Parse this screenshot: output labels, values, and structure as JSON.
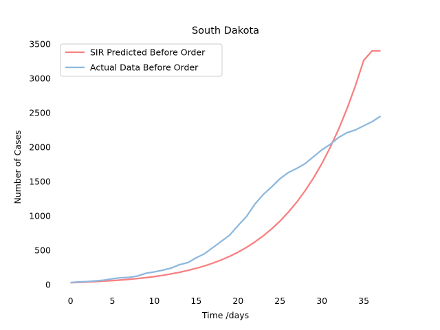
{
  "chart_data": {
    "type": "line",
    "title": "South Dakota",
    "xlabel": "Time /days",
    "ylabel": "Number of Cases",
    "xlim": [
      -1.85,
      38.85
    ],
    "ylim": [
      0,
      3500
    ],
    "xticks": [
      0,
      5,
      10,
      15,
      20,
      25,
      30,
      35
    ],
    "yticks": [
      0,
      500,
      1000,
      1500,
      2000,
      2500,
      3000,
      3500
    ],
    "grid": false,
    "legend_position": "upper-left",
    "series": [
      {
        "name": "SIR Predicted Before Order",
        "color": "#f88080",
        "x": [
          0,
          1,
          2,
          3,
          4,
          5,
          6,
          7,
          8,
          9,
          10,
          11,
          12,
          13,
          14,
          15,
          16,
          17,
          18,
          19,
          20,
          21,
          22,
          23,
          24,
          25,
          26,
          27,
          28,
          29,
          30,
          31,
          32,
          33,
          34,
          35,
          36,
          37
        ],
        "values": [
          28,
          33,
          38,
          44,
          51,
          58,
          67,
          77,
          89,
          102,
          117,
          135,
          156,
          179,
          206,
          237,
          272,
          313,
          359,
          412,
          472,
          541,
          620,
          709,
          810,
          924,
          1054,
          1200,
          1365,
          1551,
          1760,
          1996,
          2261,
          2558,
          2891,
          3263,
          3400,
          3400
        ]
      },
      {
        "name": "Actual Data Before Order",
        "color": "#8db8dd",
        "x": [
          0,
          1,
          2,
          3,
          4,
          5,
          6,
          7,
          8,
          9,
          10,
          11,
          12,
          13,
          14,
          15,
          16,
          17,
          18,
          19,
          20,
          21,
          22,
          23,
          24,
          25,
          26,
          27,
          28,
          29,
          30,
          31,
          32,
          33,
          34,
          35,
          36,
          37
        ],
        "values": [
          30,
          40,
          45,
          55,
          65,
          85,
          100,
          105,
          125,
          165,
          185,
          210,
          240,
          290,
          320,
          390,
          450,
          540,
          630,
          720,
          860,
          990,
          1170,
          1310,
          1420,
          1540,
          1630,
          1690,
          1760,
          1860,
          1960,
          2040,
          2140,
          2210,
          2250,
          2310,
          2370,
          2450
        ]
      }
    ]
  }
}
